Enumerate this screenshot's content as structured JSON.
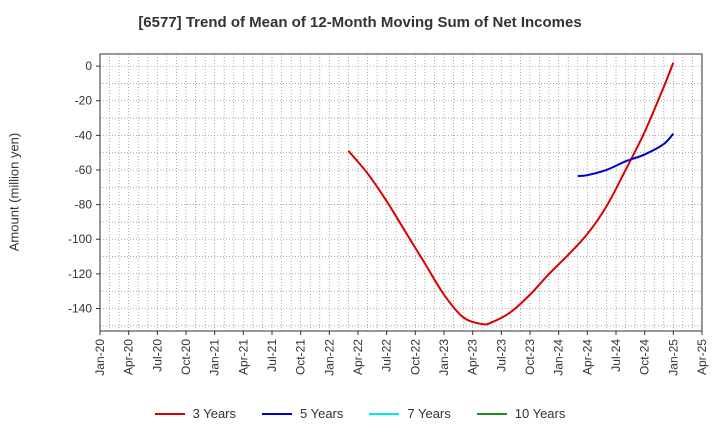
{
  "chart_data": {
    "type": "line",
    "title": "[6577]  Trend of Mean of 12-Month Moving Sum of Net Incomes",
    "xlabel": "",
    "ylabel": "Amount (million yen)",
    "x_ticks": [
      "Jan-20",
      "Apr-20",
      "Jul-20",
      "Oct-20",
      "Jan-21",
      "Apr-21",
      "Jul-21",
      "Oct-21",
      "Jan-22",
      "Apr-22",
      "Jul-22",
      "Oct-22",
      "Jan-23",
      "Apr-23",
      "Jul-23",
      "Oct-23",
      "Jan-24",
      "Apr-24",
      "Jul-24",
      "Oct-24",
      "Jan-25",
      "Apr-25"
    ],
    "y_ticks": [
      0,
      -20,
      -40,
      -60,
      -80,
      -100,
      -120,
      -140
    ],
    "ylim": [
      -153,
      7
    ],
    "grid": true,
    "legend_position": "bottom",
    "series": [
      {
        "name": "3 Years",
        "color": "#dd0000",
        "x": [
          "Mar-22",
          "May-22",
          "Jul-22",
          "Sep-22",
          "Nov-22",
          "Jan-23",
          "Mar-23",
          "May-23",
          "Jun-23",
          "Aug-23",
          "Oct-23",
          "Dec-23",
          "Feb-24",
          "Apr-24",
          "Jun-24",
          "Aug-24",
          "Oct-24",
          "Dec-24",
          "Jan-25"
        ],
        "values": [
          -49,
          -62,
          -78,
          -96,
          -114,
          -132,
          -145,
          -149,
          -148,
          -142,
          -132,
          -120,
          -109,
          -97,
          -81,
          -60,
          -38,
          -12,
          2
        ]
      },
      {
        "name": "5 Years",
        "color": "#0000cc",
        "x": [
          "Mar-24",
          "Apr-24",
          "Jun-24",
          "Aug-24",
          "Oct-24",
          "Dec-24",
          "Jan-25"
        ],
        "values": [
          -63.5,
          -63,
          -60,
          -55,
          -51,
          -45,
          -39
        ]
      },
      {
        "name": "7 Years",
        "color": "#00e5ee",
        "x": [],
        "values": []
      },
      {
        "name": "10 Years",
        "color": "#228b22",
        "x": [],
        "values": []
      }
    ]
  }
}
